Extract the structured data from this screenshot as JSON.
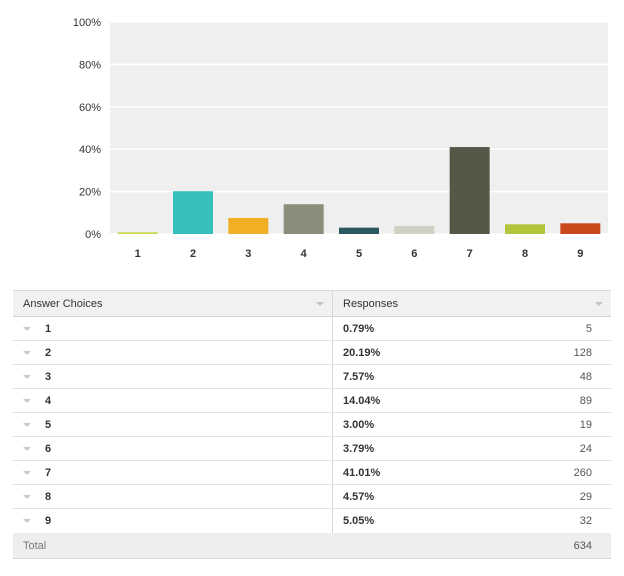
{
  "chart_data": {
    "type": "bar",
    "categories": [
      "1",
      "2",
      "3",
      "4",
      "5",
      "6",
      "7",
      "8",
      "9"
    ],
    "values": [
      0.79,
      20.19,
      7.57,
      14.04,
      3.0,
      3.79,
      41.01,
      4.57,
      5.05
    ],
    "colors": [
      "#c9d64c",
      "#35bfbd",
      "#f0af25",
      "#8b8c7c",
      "#29595e",
      "#d0d0c4",
      "#575747",
      "#b3c43a",
      "#c9491c"
    ],
    "ylim": [
      0,
      100
    ],
    "yticks": [
      "0%",
      "20%",
      "40%",
      "60%",
      "80%",
      "100%"
    ],
    "grid": true
  },
  "table": {
    "headers": {
      "choices": "Answer Choices",
      "responses": "Responses"
    },
    "rows": [
      {
        "choice": "1",
        "percent": "0.79%",
        "count": "5"
      },
      {
        "choice": "2",
        "percent": "20.19%",
        "count": "128"
      },
      {
        "choice": "3",
        "percent": "7.57%",
        "count": "48"
      },
      {
        "choice": "4",
        "percent": "14.04%",
        "count": "89"
      },
      {
        "choice": "5",
        "percent": "3.00%",
        "count": "19"
      },
      {
        "choice": "6",
        "percent": "3.79%",
        "count": "24"
      },
      {
        "choice": "7",
        "percent": "41.01%",
        "count": "260"
      },
      {
        "choice": "8",
        "percent": "4.57%",
        "count": "29"
      },
      {
        "choice": "9",
        "percent": "5.05%",
        "count": "32"
      }
    ],
    "total": {
      "label": "Total",
      "count": "634"
    }
  }
}
